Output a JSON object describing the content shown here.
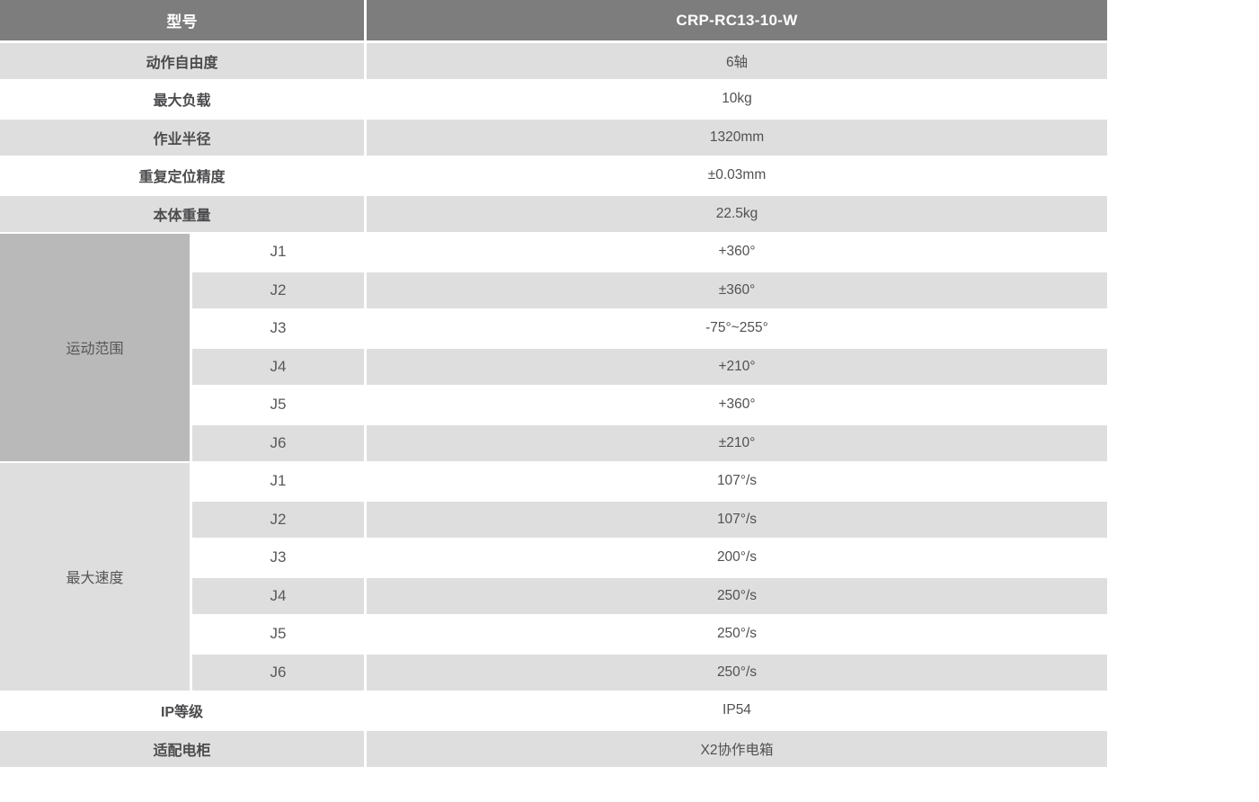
{
  "table": {
    "header": {
      "label": "型号",
      "value": "CRP-RC13-10-W"
    },
    "simple_rows_top": [
      {
        "label": "动作自由度",
        "value": "6轴"
      },
      {
        "label": "最大负载",
        "value": "10kg"
      },
      {
        "label": "作业半径",
        "value": "1320mm"
      },
      {
        "label": "重复定位精度",
        "value": "±0.03mm"
      },
      {
        "label": "本体重量",
        "value": "22.5kg"
      }
    ],
    "groups": [
      {
        "label": "运动范围",
        "rows": [
          {
            "joint": "J1",
            "value": "+360°"
          },
          {
            "joint": "J2",
            "value": "±360°"
          },
          {
            "joint": "J3",
            "value": "-75°~255°"
          },
          {
            "joint": "J4",
            "value": "+210°"
          },
          {
            "joint": "J5",
            "value": "+360°"
          },
          {
            "joint": "J6",
            "value": "±210°"
          }
        ]
      },
      {
        "label": "最大速度",
        "rows": [
          {
            "joint": "J1",
            "value": "107°/s"
          },
          {
            "joint": "J2",
            "value": "107°/s"
          },
          {
            "joint": "J3",
            "value": "200°/s"
          },
          {
            "joint": "J4",
            "value": "250°/s"
          },
          {
            "joint": "J5",
            "value": "250°/s"
          },
          {
            "joint": "J6",
            "value": "250°/s"
          }
        ]
      }
    ],
    "simple_rows_bottom": [
      {
        "label": "IP等级",
        "value": "IP54"
      },
      {
        "label": "适配电柜",
        "value": "X2协作电箱"
      }
    ]
  },
  "colors": {
    "header_bg": "#7d7d7d",
    "header_text": "#ffffff",
    "stripe_bg": "#dedede",
    "row_bg": "#ffffff",
    "group_range_bg": "#b9b9b9",
    "group_speed_bg": "#dedede",
    "body_text": "#515153"
  }
}
